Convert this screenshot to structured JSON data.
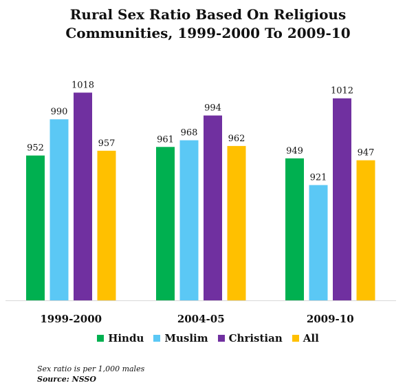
{
  "chart_data": {
    "type": "bar",
    "title": [
      "Rural Sex Ratio Based On Religious",
      "Communities, 1999-2000 To 2009-10"
    ],
    "categories": [
      "1999-2000",
      "2004-05",
      "2009-10"
    ],
    "series": [
      {
        "name": "Hindu",
        "color": "#00b050",
        "values": [
          952,
          961,
          949
        ]
      },
      {
        "name": "Muslim",
        "color": "#5bc8f5",
        "values": [
          990,
          968,
          921
        ]
      },
      {
        "name": "Christian",
        "color": "#7030a0",
        "values": [
          1018,
          994,
          1012
        ]
      },
      {
        "name": "All",
        "color": "#ffc000",
        "values": [
          957,
          962,
          947
        ]
      }
    ],
    "ylim": [
      800,
      1040
    ],
    "grid": false,
    "legend_position": "bottom"
  },
  "notes": {
    "note": "Sex ratio is per 1,000 males",
    "source": "Source: NSSO"
  }
}
